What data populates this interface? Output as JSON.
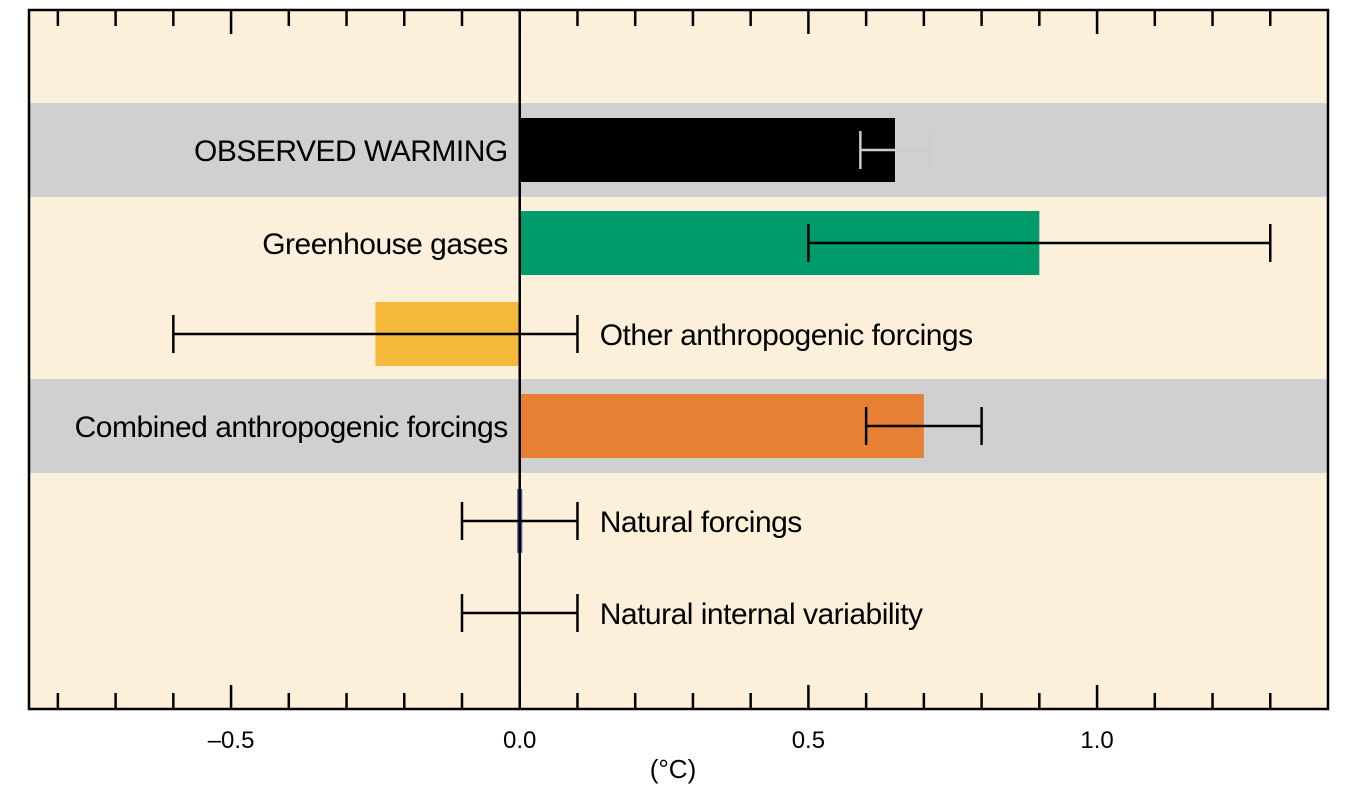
{
  "chart_data": {
    "type": "bar",
    "orientation": "horizontal",
    "title": "",
    "xlabel": "(°C)",
    "ylabel": "",
    "xlim": [
      -0.85,
      1.4
    ],
    "x_ticks": [
      -0.5,
      0.0,
      0.5,
      1.0
    ],
    "x_tick_labels": [
      "–0.5",
      "0.0",
      "0.5",
      "1.0"
    ],
    "minor_tick_step": 0.1,
    "grid": false,
    "legend": "none",
    "colors": {
      "background": "#fdf0db",
      "band": "#d0d0d0",
      "frame": "#000000"
    },
    "categories": [
      {
        "label": "OBSERVED WARMING",
        "value": 0.65,
        "error_low": 0.59,
        "error_high": 0.71,
        "color": "#000000",
        "error_color": "#cccccc",
        "label_side": "left",
        "band": true
      },
      {
        "label": "Greenhouse gases",
        "value": 0.9,
        "error_low": 0.5,
        "error_high": 1.3,
        "color": "#009b6b",
        "error_color": "#000000",
        "label_side": "left",
        "band": false
      },
      {
        "label": "Other anthropogenic forcings",
        "value": -0.25,
        "error_low": -0.6,
        "error_high": 0.1,
        "color": "#f4b93b",
        "error_color": "#000000",
        "label_side": "right",
        "band": false
      },
      {
        "label": "Combined anthropogenic forcings",
        "value": 0.7,
        "error_low": 0.6,
        "error_high": 0.8,
        "color": "#e77f35",
        "error_color": "#000000",
        "label_side": "left",
        "band": true
      },
      {
        "label": "Natural forcings",
        "value": 0.0,
        "error_low": -0.1,
        "error_high": 0.1,
        "color": "#4b4ba0",
        "error_color": "#000000",
        "label_side": "right",
        "band": false
      },
      {
        "label": "Natural internal variability",
        "value": 0.0,
        "error_low": -0.1,
        "error_high": 0.1,
        "color": "#000000",
        "error_color": "#000000",
        "label_side": "right",
        "band": false
      }
    ]
  }
}
